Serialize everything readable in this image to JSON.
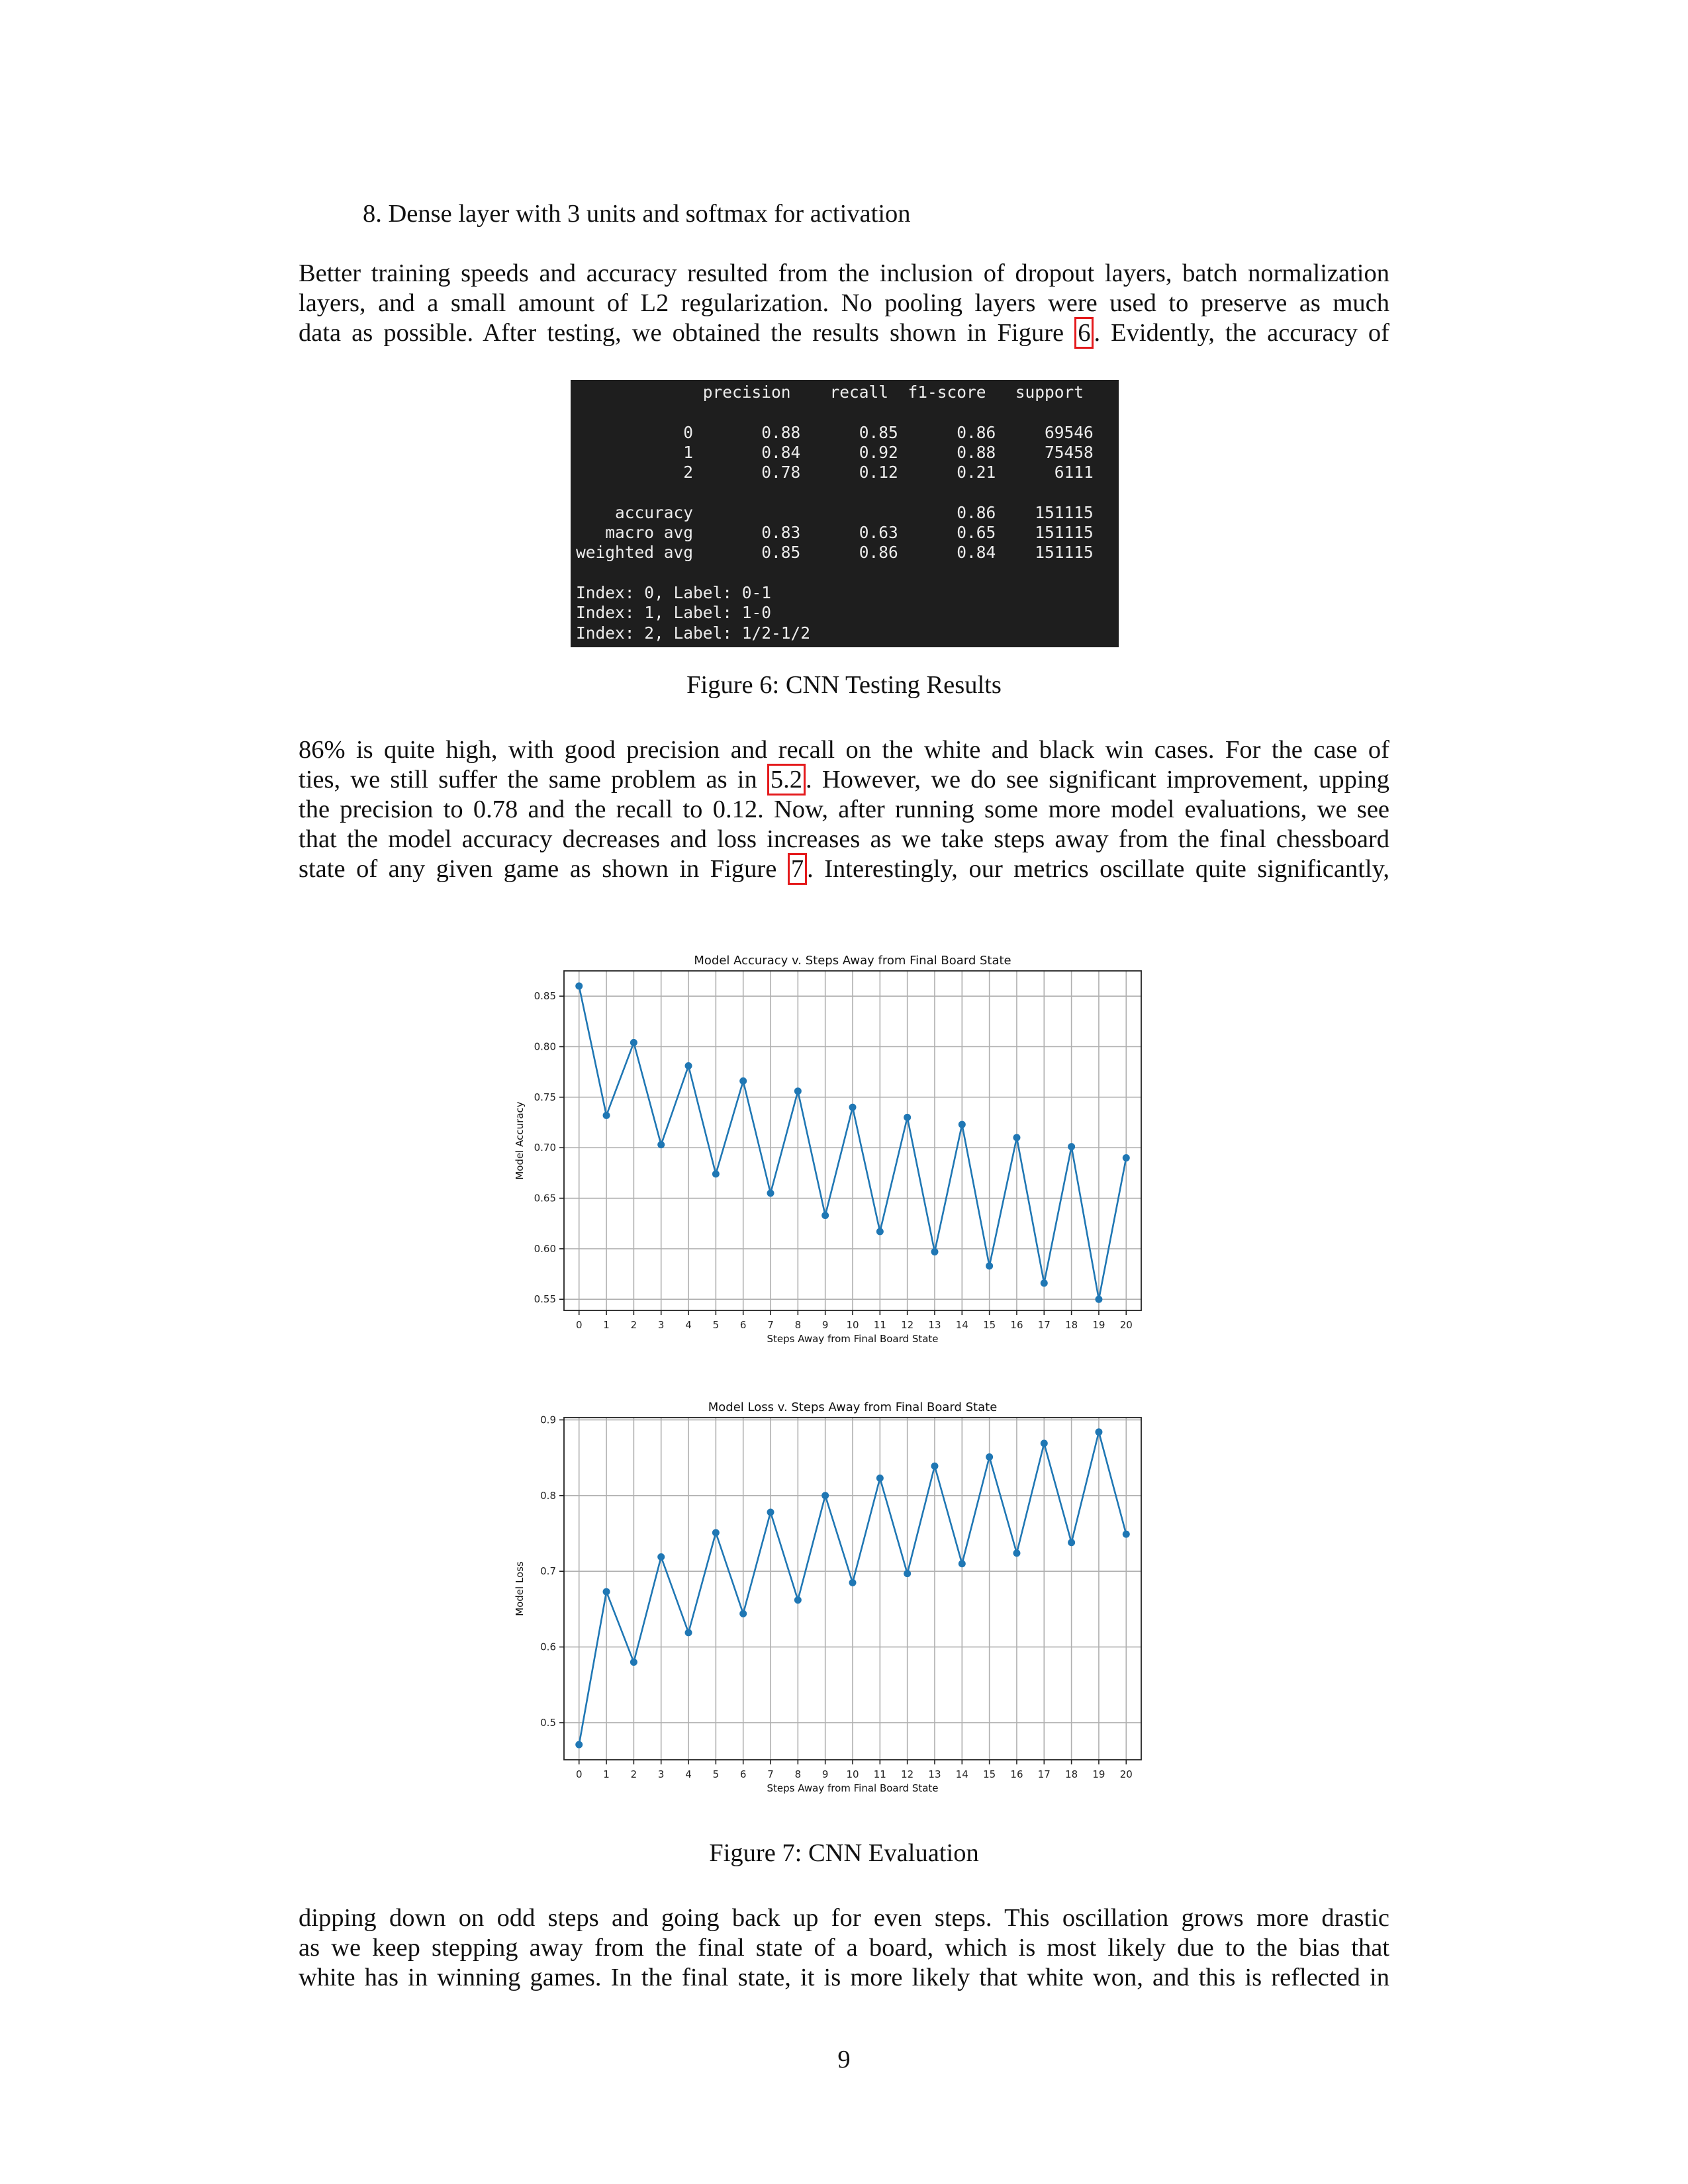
{
  "list_item": "8.  Dense layer with 3 units and softmax for activation",
  "para1": {
    "lines": [
      "Better training speeds and accuracy resulted from the inclusion of dropout layers, batch normalization",
      "layers, and a small amount of L2 regularization. No pooling layers were used to preserve as much"
    ],
    "line3_pre": "data as possible. After testing, we obtained the results shown in Figure ",
    "line3_ref": "6",
    "line3_post": ". Evidently, the accuracy of"
  },
  "terminal": {
    "text": "             precision    recall  f1-score   support\n\n           0       0.88      0.85      0.86     69546\n           1       0.84      0.92      0.88     75458\n           2       0.78      0.12      0.21      6111\n\n    accuracy                           0.86    151115\n   macro avg       0.83      0.63      0.65    151115\nweighted avg       0.85      0.86      0.84    151115\n\nIndex: 0, Label: 0-1\nIndex: 1, Label: 1-0\nIndex: 2, Label: 1/2-1/2"
  },
  "fig6_caption": "Figure 6: CNN Testing Results",
  "para2": {
    "line1": "86% is quite high, with good precision and recall on the white and black win cases. For the case of",
    "line2_pre": "ties, we still suffer the same problem as in ",
    "line2_ref": "5.2",
    "line2_post": ". However, we do see significant improvement, upping",
    "line3": "the precision to 0.78 and the recall to 0.12. Now, after running some more model evaluations, we see",
    "line4": "that the model accuracy decreases and loss increases as we take steps away from the final chessboard",
    "line5_pre": "state of any given game as shown in Figure ",
    "line5_ref": "7",
    "line5_post": ". Interestingly, our metrics oscillate quite significantly,"
  },
  "chart_data": [
    {
      "type": "line",
      "title": "Model Accuracy v. Steps Away from Final Board State",
      "xlabel": "Steps Away from Final Board State",
      "ylabel": "Model Accuracy",
      "x": [
        0,
        1,
        2,
        3,
        4,
        5,
        6,
        7,
        8,
        9,
        10,
        11,
        12,
        13,
        14,
        15,
        16,
        17,
        18,
        19,
        20
      ],
      "values": [
        0.86,
        0.732,
        0.804,
        0.703,
        0.781,
        0.674,
        0.766,
        0.655,
        0.756,
        0.633,
        0.74,
        0.617,
        0.73,
        0.597,
        0.723,
        0.583,
        0.71,
        0.566,
        0.701,
        0.55,
        0.69
      ],
      "yticks": [
        0.55,
        0.6,
        0.65,
        0.7,
        0.75,
        0.8,
        0.85
      ],
      "ylim": [
        0.539,
        0.875
      ],
      "xlim": [
        -0.55,
        20.55
      ],
      "grid": true,
      "color": "#1f77b4"
    },
    {
      "type": "line",
      "title": "Model Loss v. Steps Away from Final Board State",
      "xlabel": "Steps Away from Final Board State",
      "ylabel": "Model Loss",
      "x": [
        0,
        1,
        2,
        3,
        4,
        5,
        6,
        7,
        8,
        9,
        10,
        11,
        12,
        13,
        14,
        15,
        16,
        17,
        18,
        19,
        20
      ],
      "values": [
        0.471,
        0.673,
        0.58,
        0.719,
        0.619,
        0.751,
        0.644,
        0.778,
        0.662,
        0.8,
        0.685,
        0.823,
        0.697,
        0.839,
        0.71,
        0.851,
        0.724,
        0.869,
        0.738,
        0.884,
        0.749
      ],
      "yticks": [
        0.5,
        0.6,
        0.7,
        0.8,
        0.9
      ],
      "ylim": [
        0.451,
        0.903
      ],
      "xlim": [
        -0.55,
        20.55
      ],
      "grid": true,
      "color": "#1f77b4"
    }
  ],
  "fig7_caption": "Figure 7: CNN Evaluation",
  "para3": {
    "lines": [
      "dipping down on odd steps and going back up for even steps. This oscillation grows more drastic",
      "as we keep stepping away from the final state of a board, which is most likely due to the bias that",
      "white has in winning games. In the final state, it is more likely that white won, and this is reflected in"
    ]
  },
  "page_number": "9"
}
